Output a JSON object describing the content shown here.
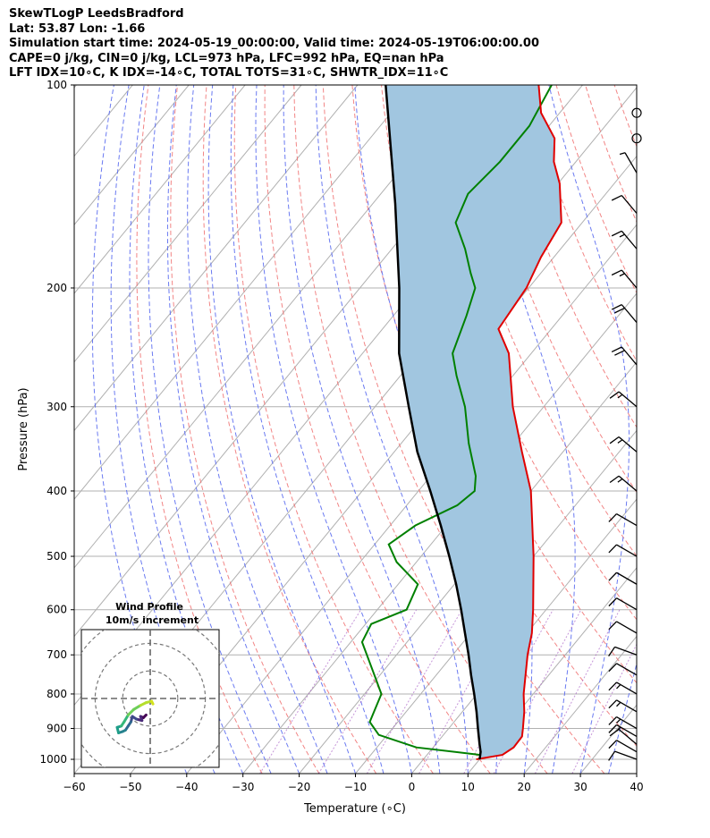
{
  "header": {
    "line1": "SkewTLogP LeedsBradford",
    "line2": "Lat: 53.87   Lon: -1.66",
    "line3": "Simulation start time: 2024-05-19_00:00:00, Valid time: 2024-05-19T06:00:00.00",
    "line4": "CAPE=0 j/kg, CIN=0 j/kg, LCL=973 hPa, LFC=992 hPa, EQ=nan hPa",
    "line5": "LFT IDX=10∘C, K IDX=-14∘C, TOTAL TOTS=31∘C, SHWTR_IDX=11∘C"
  },
  "colors": {
    "temperature": "#e00000",
    "dewpoint": "#008000",
    "parcel": "#000000",
    "shade": "#a1c6e0",
    "dry_adiabat": "#f07070",
    "moist_adiabat": "#5a6cf0",
    "isotherm": "#b0b0b0",
    "mixing_ratio": "#a050c0"
  },
  "chart_data": [
    {
      "type": "line",
      "subtype": "skew-t log-p",
      "title": "",
      "xlabel": "Temperature (∘C)",
      "ylabel": "Pressure (hPa)",
      "xlim": [
        -60,
        40
      ],
      "ylim": [
        1050,
        100
      ],
      "yscale": "log",
      "x_ticks": [
        "−60",
        "−50",
        "−40",
        "−30",
        "−20",
        "−10",
        "0",
        "10",
        "20",
        "30",
        "40"
      ],
      "x_tick_values": [
        -60,
        -50,
        -40,
        -30,
        -20,
        -10,
        0,
        10,
        20,
        30,
        40
      ],
      "y_ticks": [
        "1000",
        "900",
        "800",
        "700",
        "600",
        "500",
        "400",
        "300",
        "200",
        "100"
      ],
      "y_tick_values": [
        1000,
        900,
        800,
        700,
        600,
        500,
        400,
        300,
        200,
        100
      ],
      "grid": true,
      "series": [
        {
          "role": "temperature",
          "points": [
            {
              "p": 1000,
              "t": 9.4
            },
            {
              "p": 985,
              "t": 13.4
            },
            {
              "p": 960,
              "t": 14.3
            },
            {
              "p": 925,
              "t": 14.2
            },
            {
              "p": 900,
              "t": 13.2
            },
            {
              "p": 850,
              "t": 11.0
            },
            {
              "p": 800,
              "t": 8.3
            },
            {
              "p": 700,
              "t": 3.3
            },
            {
              "p": 650,
              "t": 0.9
            },
            {
              "p": 600,
              "t": -2.3
            },
            {
              "p": 500,
              "t": -10.0
            },
            {
              "p": 400,
              "t": -20.0
            },
            {
              "p": 350,
              "t": -27.3
            },
            {
              "p": 300,
              "t": -35.5
            },
            {
              "p": 250,
              "t": -44.0
            },
            {
              "p": 230,
              "t": -49.4
            },
            {
              "p": 200,
              "t": -50.4
            },
            {
              "p": 180,
              "t": -52.3
            },
            {
              "p": 160,
              "t": -53.7
            },
            {
              "p": 140,
              "t": -59.7
            },
            {
              "p": 130,
              "t": -63.9
            },
            {
              "p": 120,
              "t": -67.2
            },
            {
              "p": 110,
              "t": -73.3
            },
            {
              "p": 100,
              "t": -77.8
            }
          ]
        },
        {
          "role": "dewpoint",
          "points": [
            {
              "p": 985,
              "t": 9.5
            },
            {
              "p": 960,
              "t": -3.0
            },
            {
              "p": 920,
              "t": -11.5
            },
            {
              "p": 880,
              "t": -15.0
            },
            {
              "p": 800,
              "t": -17.0
            },
            {
              "p": 750,
              "t": -21.0
            },
            {
              "p": 670,
              "t": -28.0
            },
            {
              "p": 630,
              "t": -29.0
            },
            {
              "p": 600,
              "t": -24.8
            },
            {
              "p": 550,
              "t": -26.5
            },
            {
              "p": 510,
              "t": -33.5
            },
            {
              "p": 480,
              "t": -37.5
            },
            {
              "p": 450,
              "t": -35.5
            },
            {
              "p": 420,
              "t": -31.0
            },
            {
              "p": 400,
              "t": -30.0
            },
            {
              "p": 380,
              "t": -32.0
            },
            {
              "p": 340,
              "t": -38.0
            },
            {
              "p": 300,
              "t": -44.0
            },
            {
              "p": 270,
              "t": -50.0
            },
            {
              "p": 250,
              "t": -54.0
            },
            {
              "p": 220,
              "t": -57.0
            },
            {
              "p": 200,
              "t": -59.5
            },
            {
              "p": 190,
              "t": -62.5
            },
            {
              "p": 175,
              "t": -67.0
            },
            {
              "p": 160,
              "t": -72.5
            },
            {
              "p": 145,
              "t": -74.5
            },
            {
              "p": 130,
              "t": -73.5
            },
            {
              "p": 115,
              "t": -73.5
            },
            {
              "p": 100,
              "t": -75.5
            }
          ]
        },
        {
          "role": "parcel",
          "points": [
            {
              "p": 1000,
              "t": 10.0
            },
            {
              "p": 975,
              "t": 9.1
            },
            {
              "p": 950,
              "t": 7.8
            },
            {
              "p": 900,
              "t": 5.2
            },
            {
              "p": 850,
              "t": 2.5
            },
            {
              "p": 800,
              "t": -0.5
            },
            {
              "p": 750,
              "t": -3.8
            },
            {
              "p": 700,
              "t": -7.2
            },
            {
              "p": 650,
              "t": -11.0
            },
            {
              "p": 600,
              "t": -15.1
            },
            {
              "p": 550,
              "t": -19.7
            },
            {
              "p": 500,
              "t": -25.0
            },
            {
              "p": 450,
              "t": -31.0
            },
            {
              "p": 400,
              "t": -37.9
            },
            {
              "p": 350,
              "t": -45.9
            },
            {
              "p": 300,
              "t": -54.0
            },
            {
              "p": 250,
              "t": -63.5
            },
            {
              "p": 200,
              "t": -73.0
            },
            {
              "p": 150,
              "t": -86.0
            },
            {
              "p": 100,
              "t": -105.0
            }
          ]
        }
      ],
      "wind_barbs": [
        {
          "p": 1000,
          "speed_kt": 10,
          "dir_deg": 290
        },
        {
          "p": 975,
          "speed_kt": 10,
          "dir_deg": 300
        },
        {
          "p": 950,
          "speed_kt": 10,
          "dir_deg": 310
        },
        {
          "p": 925,
          "speed_kt": 15,
          "dir_deg": 300
        },
        {
          "p": 900,
          "speed_kt": 15,
          "dir_deg": 300
        },
        {
          "p": 850,
          "speed_kt": 15,
          "dir_deg": 300
        },
        {
          "p": 800,
          "speed_kt": 15,
          "dir_deg": 300
        },
        {
          "p": 750,
          "speed_kt": 10,
          "dir_deg": 300
        },
        {
          "p": 700,
          "speed_kt": 10,
          "dir_deg": 290
        },
        {
          "p": 650,
          "speed_kt": 10,
          "dir_deg": 300
        },
        {
          "p": 600,
          "speed_kt": 10,
          "dir_deg": 300
        },
        {
          "p": 550,
          "speed_kt": 10,
          "dir_deg": 300
        },
        {
          "p": 500,
          "speed_kt": 10,
          "dir_deg": 300
        },
        {
          "p": 450,
          "speed_kt": 10,
          "dir_deg": 300
        },
        {
          "p": 400,
          "speed_kt": 15,
          "dir_deg": 310
        },
        {
          "p": 350,
          "speed_kt": 15,
          "dir_deg": 310
        },
        {
          "p": 300,
          "speed_kt": 15,
          "dir_deg": 310
        },
        {
          "p": 260,
          "speed_kt": 20,
          "dir_deg": 320
        },
        {
          "p": 225,
          "speed_kt": 20,
          "dir_deg": 320
        },
        {
          "p": 200,
          "speed_kt": 15,
          "dir_deg": 320
        },
        {
          "p": 175,
          "speed_kt": 15,
          "dir_deg": 320
        },
        {
          "p": 155,
          "speed_kt": 10,
          "dir_deg": 320
        },
        {
          "p": 135,
          "speed_kt": 5,
          "dir_deg": 330
        },
        {
          "p": 120,
          "speed_kt": 0,
          "dir_deg": 0
        },
        {
          "p": 110,
          "speed_kt": 0,
          "dir_deg": 0
        }
      ]
    },
    {
      "type": "scatter",
      "subtype": "hodograph",
      "title": "Wind Profile",
      "subtitle": "10m/s increment",
      "rings_ms": [
        10,
        20,
        30
      ],
      "xlim": [
        -25,
        25
      ],
      "ylim": [
        -25,
        25
      ],
      "points": [
        {
          "u": -1.5,
          "v": -6.0
        },
        {
          "u": -2.5,
          "v": -7.0
        },
        {
          "u": -3.5,
          "v": -6.5
        },
        {
          "u": -3.0,
          "v": -8.0
        },
        {
          "u": -5.0,
          "v": -7.5
        },
        {
          "u": -6.5,
          "v": -6.5
        },
        {
          "u": -7.0,
          "v": -8.5
        },
        {
          "u": -8.0,
          "v": -10.0
        },
        {
          "u": -9.0,
          "v": -11.5
        },
        {
          "u": -10.0,
          "v": -12.0
        },
        {
          "u": -11.5,
          "v": -12.5
        },
        {
          "u": -12.0,
          "v": -10.5
        },
        {
          "u": -10.5,
          "v": -10.0
        },
        {
          "u": -9.5,
          "v": -8.5
        },
        {
          "u": -8.0,
          "v": -6.0
        },
        {
          "u": -6.0,
          "v": -4.0
        },
        {
          "u": -3.5,
          "v": -2.5
        },
        {
          "u": -1.5,
          "v": -1.5
        },
        {
          "u": 0.5,
          "v": -1.0
        },
        {
          "u": 1.0,
          "v": -2.0
        }
      ]
    }
  ]
}
